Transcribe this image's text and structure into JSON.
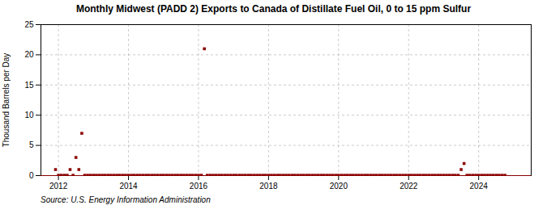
{
  "chart_data": {
    "type": "scatter",
    "title": "Monthly Midwest (PADD 2) Exports to Canada of Distillate Fuel Oil, 0 to 15 ppm Sulfur",
    "ylabel": "Thousand Barrels per Day",
    "source": "Source: U.S. Energy Information Administration",
    "color": "#8b0000",
    "marker": "square",
    "grid": true,
    "xlim": [
      2011.5,
      2025.5
    ],
    "xticks": [
      2012,
      2014,
      2016,
      2018,
      2020,
      2022,
      2024
    ],
    "ylim": [
      0,
      25
    ],
    "yticks": [
      0,
      5,
      10,
      15,
      20,
      25
    ],
    "x": [
      2011.917,
      2012.0,
      2012.083,
      2012.167,
      2012.25,
      2012.333,
      2012.417,
      2012.5,
      2012.583,
      2012.667,
      2012.75,
      2012.833,
      2012.917,
      2013.0,
      2013.083,
      2013.167,
      2013.25,
      2013.333,
      2013.417,
      2013.5,
      2013.583,
      2013.667,
      2013.75,
      2013.833,
      2013.917,
      2014.0,
      2014.083,
      2014.167,
      2014.25,
      2014.333,
      2014.417,
      2014.5,
      2014.583,
      2014.667,
      2014.75,
      2014.833,
      2014.917,
      2015.0,
      2015.083,
      2015.167,
      2015.25,
      2015.333,
      2015.417,
      2015.5,
      2015.583,
      2015.667,
      2015.75,
      2015.833,
      2015.917,
      2016.0,
      2016.083,
      2016.167,
      2016.25,
      2016.333,
      2016.417,
      2016.5,
      2016.583,
      2016.667,
      2016.75,
      2016.833,
      2016.917,
      2017.0,
      2017.083,
      2017.167,
      2017.25,
      2017.333,
      2017.417,
      2017.5,
      2017.583,
      2017.667,
      2017.75,
      2017.833,
      2017.917,
      2018.0,
      2018.083,
      2018.167,
      2018.25,
      2018.333,
      2018.417,
      2018.5,
      2018.583,
      2018.667,
      2018.75,
      2018.833,
      2018.917,
      2019.0,
      2019.083,
      2019.167,
      2019.25,
      2019.333,
      2019.417,
      2019.5,
      2019.583,
      2019.667,
      2019.75,
      2019.833,
      2019.917,
      2020.0,
      2020.083,
      2020.167,
      2020.25,
      2020.333,
      2020.417,
      2020.5,
      2020.583,
      2020.667,
      2020.75,
      2020.833,
      2020.917,
      2021.0,
      2021.083,
      2021.167,
      2021.25,
      2021.333,
      2021.417,
      2021.5,
      2021.583,
      2021.667,
      2021.75,
      2021.833,
      2021.917,
      2022.0,
      2022.083,
      2022.167,
      2022.25,
      2022.333,
      2022.417,
      2022.5,
      2022.583,
      2022.667,
      2022.75,
      2022.833,
      2022.917,
      2023.0,
      2023.083,
      2023.167,
      2023.25,
      2023.333,
      2023.417,
      2023.5,
      2023.583,
      2023.667,
      2023.75,
      2023.833,
      2023.917,
      2024.0,
      2024.083,
      2024.167,
      2024.25,
      2024.333,
      2024.417,
      2024.5,
      2024.583,
      2024.667,
      2024.75
    ],
    "values": [
      1.0,
      0.05,
      0.05,
      0.05,
      0.05,
      1.0,
      0.05,
      3.0,
      1.0,
      7.0,
      0.05,
      0.05,
      0.05,
      0.05,
      0.05,
      0.05,
      0.05,
      0.05,
      0.05,
      0.05,
      0.05,
      0.05,
      0.05,
      0.05,
      0.05,
      0.05,
      0.05,
      0.05,
      0.05,
      0.05,
      0.05,
      0.05,
      0.05,
      0.05,
      0.05,
      0.05,
      0.05,
      0.05,
      0.05,
      0.05,
      0.05,
      0.05,
      0.05,
      0.05,
      0.05,
      0.05,
      0.05,
      0.05,
      0.05,
      0.05,
      0.05,
      21.0,
      0.05,
      0.05,
      0.05,
      0.05,
      0.05,
      0.05,
      0.05,
      0.05,
      0.05,
      0.05,
      0.05,
      0.05,
      0.05,
      0.05,
      0.05,
      0.05,
      0.05,
      0.05,
      0.05,
      0.05,
      0.05,
      0.05,
      0.05,
      0.05,
      0.05,
      0.05,
      0.05,
      0.05,
      0.05,
      0.05,
      0.05,
      0.05,
      0.05,
      0.05,
      0.05,
      0.05,
      0.05,
      0.05,
      0.05,
      0.05,
      0.05,
      0.05,
      0.05,
      0.05,
      0.05,
      0.05,
      0.05,
      0.05,
      0.05,
      0.05,
      0.05,
      0.05,
      0.05,
      0.05,
      0.05,
      0.05,
      0.05,
      0.05,
      0.05,
      0.05,
      0.05,
      0.05,
      0.05,
      0.05,
      0.05,
      0.05,
      0.05,
      0.05,
      0.05,
      0.05,
      0.05,
      0.05,
      0.05,
      0.05,
      0.05,
      0.05,
      0.05,
      0.05,
      0.05,
      0.05,
      0.05,
      0.05,
      0.05,
      0.05,
      0.05,
      0.05,
      0.05,
      1.0,
      2.0,
      0.05,
      0.05,
      0.05,
      0.05,
      0.05,
      0.05,
      0.05,
      0.05,
      0.05,
      0.05,
      0.05,
      0.05,
      0.05,
      0.05
    ]
  }
}
